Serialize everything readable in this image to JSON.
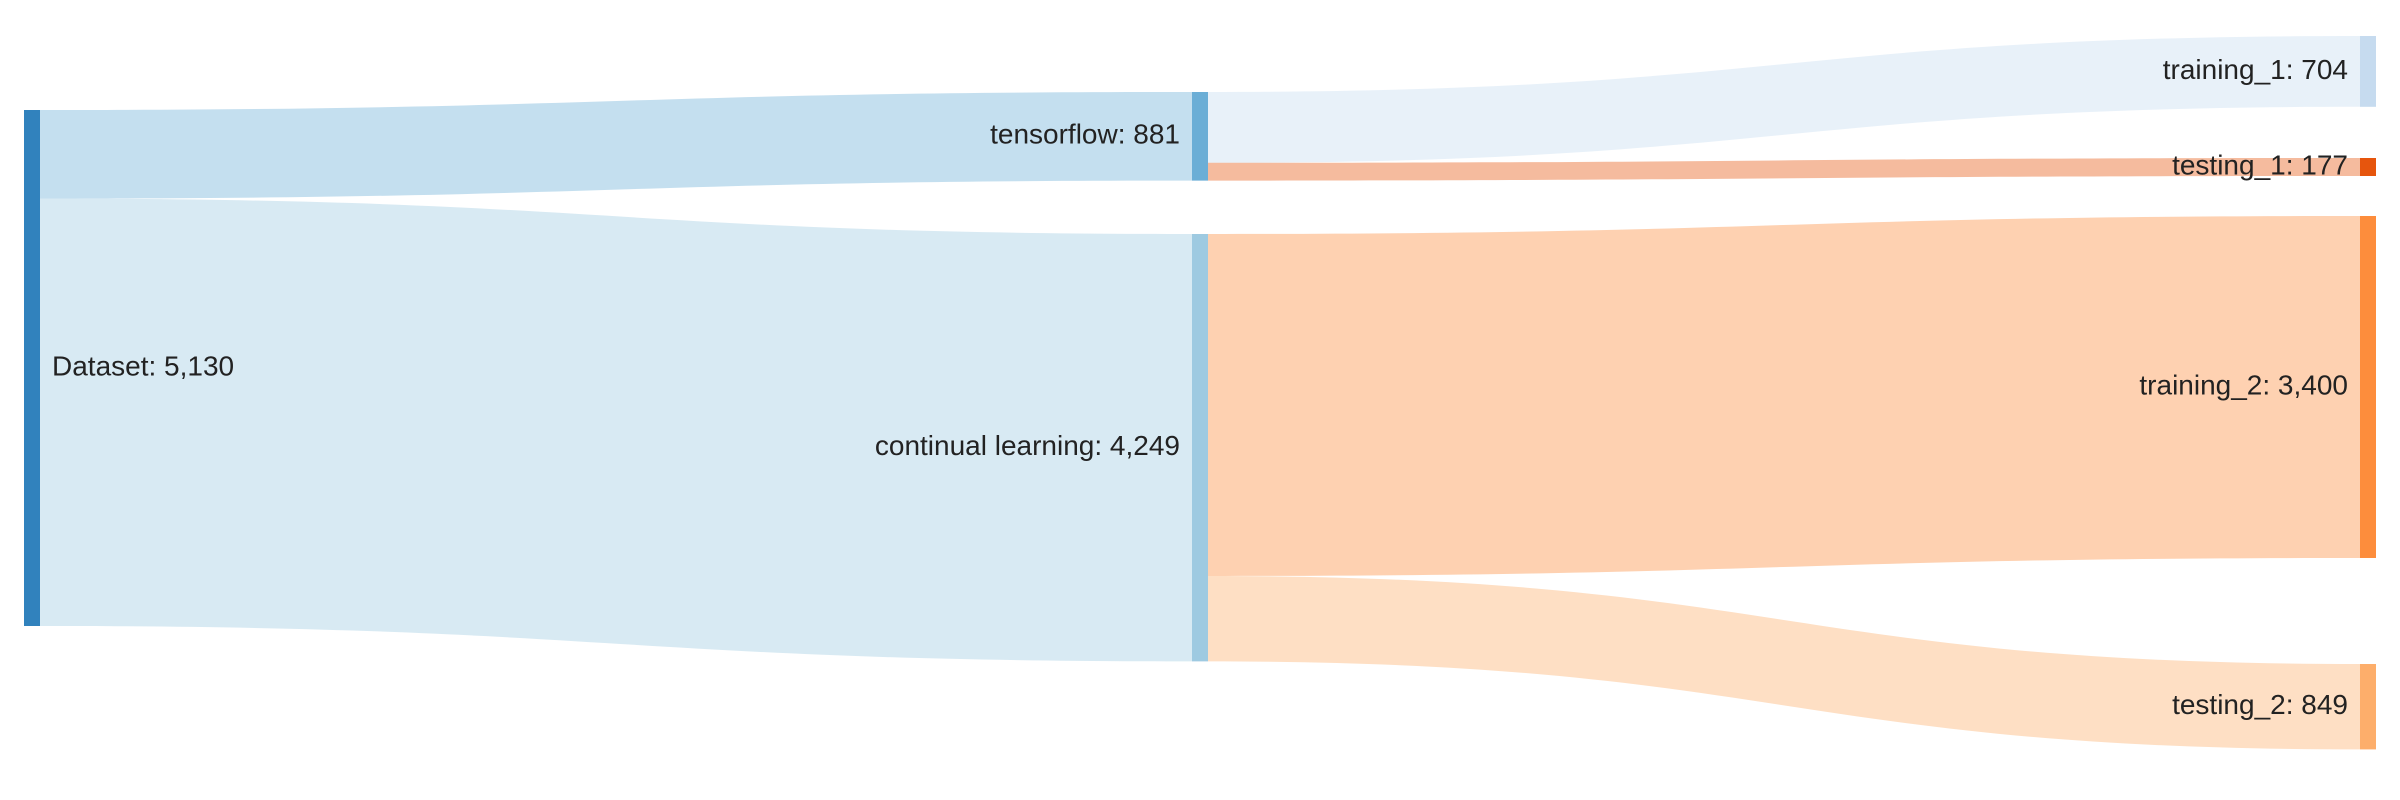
{
  "chart_data": {
    "type": "sankey",
    "title": "",
    "nodes": [
      {
        "id": "dataset",
        "name": "Dataset",
        "label": "Dataset: 5,130",
        "value": 5130,
        "color": "#3182bd"
      },
      {
        "id": "tensorflow",
        "name": "tensorflow",
        "label": "tensorflow: 881",
        "value": 881,
        "color": "#6baed6"
      },
      {
        "id": "continual",
        "name": "continual learning",
        "label": "continual learning: 4,249",
        "value": 4249,
        "color": "#9ecae1"
      },
      {
        "id": "training_1",
        "name": "training_1",
        "label": "training_1: 704",
        "value": 704,
        "color": "#c6dbef"
      },
      {
        "id": "testing_1",
        "name": "testing_1",
        "label": "testing_1: 177",
        "value": 177,
        "color": "#e6550d"
      },
      {
        "id": "training_2",
        "name": "training_2",
        "label": "training_2: 3,400",
        "value": 3400,
        "color": "#fd8d3c"
      },
      {
        "id": "testing_2",
        "name": "testing_2",
        "label": "testing_2: 849",
        "value": 849,
        "color": "#fdae6b"
      }
    ],
    "links": [
      {
        "source": "dataset",
        "target": "tensorflow",
        "value": 881
      },
      {
        "source": "dataset",
        "target": "continual",
        "value": 4249
      },
      {
        "source": "tensorflow",
        "target": "training_1",
        "value": 704
      },
      {
        "source": "tensorflow",
        "target": "testing_1",
        "value": 177
      },
      {
        "source": "continual",
        "target": "training_2",
        "value": 3400
      },
      {
        "source": "continual",
        "target": "testing_2",
        "value": 849
      }
    ]
  }
}
